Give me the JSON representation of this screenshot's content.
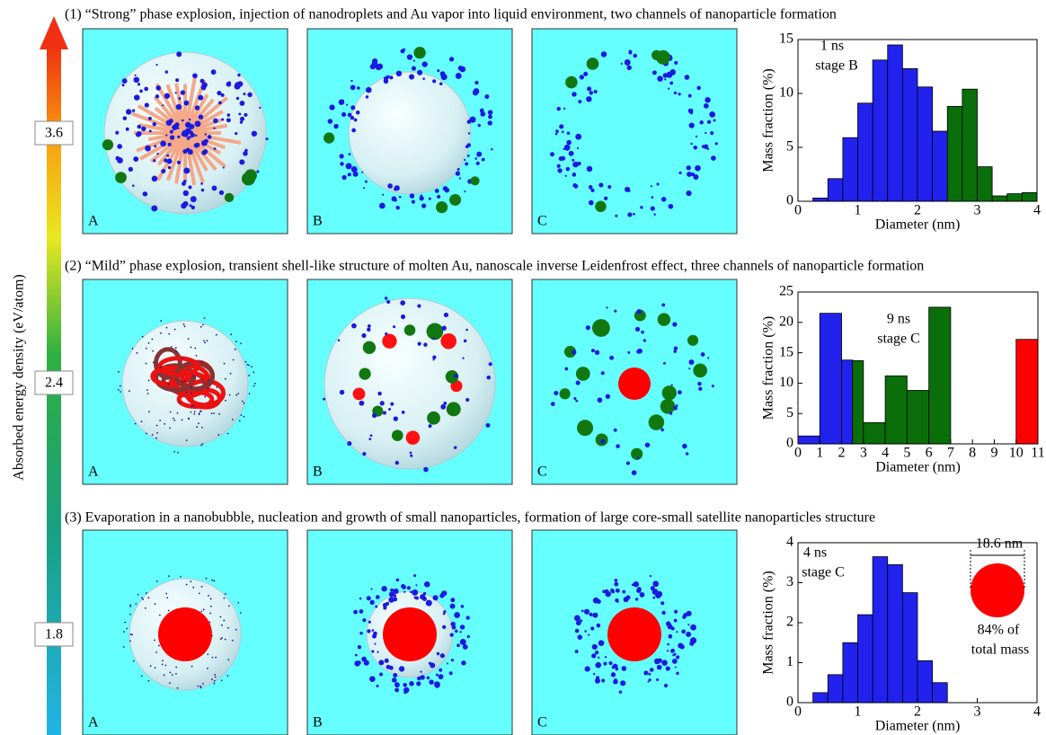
{
  "energy_axis": {
    "title": "Absorbed energy density (eV/atom)",
    "labels": [
      "3.6",
      "2.4",
      "1.8"
    ]
  },
  "rows": [
    {
      "caption": "(1) “Strong” phase explosion, injection of nanodroplets and Au vapor into liquid environment, two channels of nanoparticle formation",
      "panels": [
        "A",
        "B",
        "C"
      ]
    },
    {
      "caption": "(2) “Mild” phase explosion, transient shell-like structure of molten Au, nanoscale inverse Leidenfrost effect, three channels of nanoparticle formation",
      "panels": [
        "A",
        "B",
        "C"
      ]
    },
    {
      "caption": "(3) Evaporation in a nanobubble, nucleation and growth of small nanoparticles, formation of large core-small satellite nanoparticles structure",
      "panels": [
        "A",
        "B",
        "C"
      ]
    }
  ],
  "chart_data": [
    {
      "type": "histogram",
      "x_label": "Diameter (nm)",
      "y_label": "Mass fraction (%)",
      "annotations": [
        "1 ns",
        "stage B"
      ],
      "bins": [
        0.25,
        0.5,
        0.75,
        1,
        1.25,
        1.5,
        1.75,
        2,
        2.25,
        2.5,
        2.75,
        3,
        3.25,
        3.5,
        3.75,
        4
      ],
      "values": [
        0.3,
        2.1,
        5.9,
        9.1,
        13.1,
        14.5,
        12.3,
        10.6,
        6.5,
        8.8,
        10.4,
        3.2,
        0.5,
        0.7,
        0.8
      ],
      "colors": [
        "#2222ee",
        "#2222ee",
        "#2222ee",
        "#2222ee",
        "#2222ee",
        "#2222ee",
        "#2222ee",
        "#2222ee",
        "#2222ee",
        "#0a6e0a",
        "#0a6e0a",
        "#0a6e0a",
        "#0a6e0a",
        "#0a6e0a",
        "#0a6e0a"
      ],
      "xlim": [
        0,
        4
      ],
      "xticks": [
        0,
        1,
        2,
        3,
        4
      ],
      "ylim": [
        0,
        15
      ],
      "yticks": [
        0,
        5,
        10,
        15
      ]
    },
    {
      "type": "histogram",
      "x_label": "Diameter (nm)",
      "y_label": "Mass fraction (%)",
      "annotations": [
        "9 ns",
        "stage C"
      ],
      "bins": [
        0,
        1,
        2,
        2.5,
        3,
        4,
        5,
        6,
        7,
        8,
        9,
        10,
        11
      ],
      "values": [
        1.3,
        21.5,
        13.8,
        13.7,
        3.5,
        11.2,
        8.8,
        22.5,
        0,
        0,
        0,
        17.2
      ],
      "colors": [
        "#2222ee",
        "#2222ee",
        "#2222ee",
        "#0a6e0a",
        "#0a6e0a",
        "#0a6e0a",
        "#0a6e0a",
        "#0a6e0a",
        "#0a6e0a",
        "#0a6e0a",
        "#0a6e0a",
        "#ff0000"
      ],
      "xlim": [
        0,
        11
      ],
      "xticks": [
        0,
        1,
        2,
        3,
        4,
        5,
        6,
        7,
        8,
        9,
        10,
        11
      ],
      "ylim": [
        0,
        25
      ],
      "yticks": [
        0,
        5,
        10,
        15,
        20,
        25
      ]
    },
    {
      "type": "histogram",
      "x_label": "Diameter (nm)",
      "y_label": "Mass fraction (%)",
      "annotations": [
        "4 ns",
        "stage C",
        "18.6 nm",
        "84% of",
        "total mass"
      ],
      "bins": [
        0.25,
        0.5,
        0.75,
        1,
        1.25,
        1.5,
        1.75,
        2,
        2.25,
        2.5
      ],
      "values": [
        0.25,
        0.7,
        1.5,
        2.2,
        3.65,
        3.45,
        2.75,
        1.05,
        0.5
      ],
      "colors": [
        "#2222ee",
        "#2222ee",
        "#2222ee",
        "#2222ee",
        "#2222ee",
        "#2222ee",
        "#2222ee",
        "#2222ee",
        "#2222ee"
      ],
      "xlim": [
        0,
        4
      ],
      "xticks": [
        0,
        1,
        2,
        3,
        4
      ],
      "ylim": [
        0,
        4
      ],
      "yticks": [
        0,
        1,
        2,
        3,
        4
      ]
    }
  ]
}
